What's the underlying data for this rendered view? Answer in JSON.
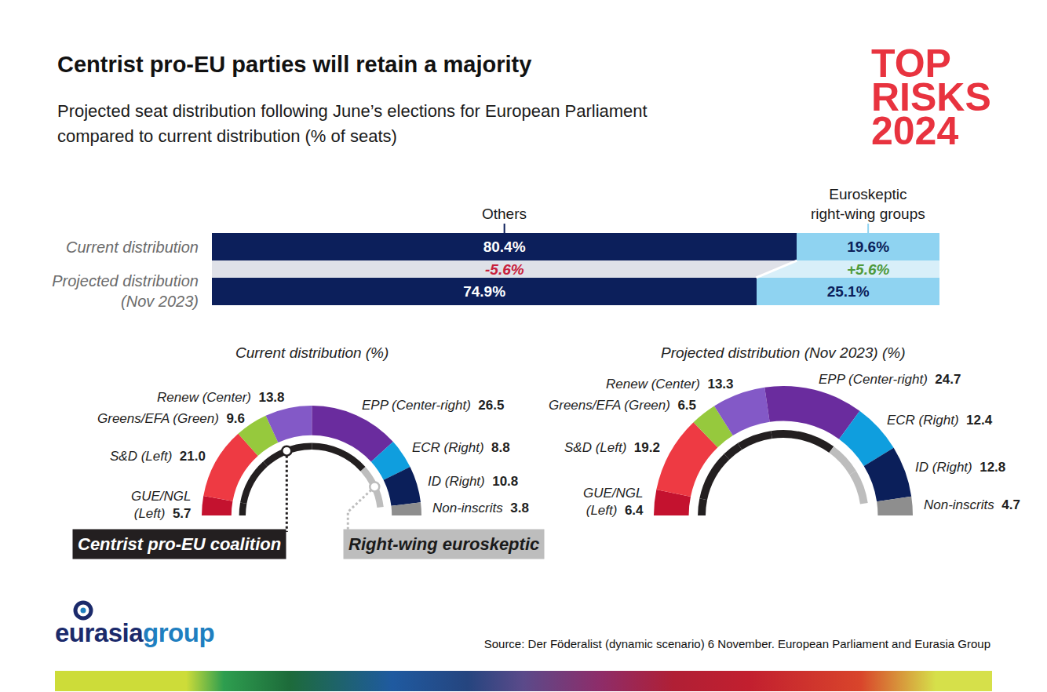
{
  "header": {
    "title": "Centrist pro-EU parties will retain a majority",
    "subtitle": "Projected seat distribution following June’s elections for European Parliament\ncompared to current distribution (% of seats)",
    "badge": "TOP\nRISKS\n2024"
  },
  "footer": {
    "logo": [
      "eurasia",
      "group"
    ],
    "source": "Source: Der Föderalist (dynamic scenario) 6 November. European Parliament and Eurasia Group"
  },
  "chart_data": [
    {
      "type": "bar",
      "orientation": "horizontal",
      "stacked": true,
      "data_labels": true,
      "tick_labels": "y",
      "grid": false,
      "categories": [
        "Current distribution",
        null,
        "Projected distribution\n(Nov 2023)"
      ],
      "xlim": [
        0,
        100
      ],
      "series": [
        {
          "name": "Others",
          "color": "#0c1f5b",
          "values": [
            80.4,
            null,
            74.9
          ],
          "value_labels": [
            "80.4%",
            null,
            "74.9%"
          ]
        },
        {
          "name": "Euroskeptic\nright-wing groups",
          "color": "#8fd3f1",
          "values": [
            19.6,
            null,
            25.1
          ],
          "value_labels": [
            "19.6%",
            null,
            "25.1%"
          ]
        }
      ],
      "change": {
        "values": [
          -5.6,
          5.6
        ],
        "value_labels": [
          "-5.6%",
          "+5.6%"
        ],
        "colors": [
          "#c8203c",
          "#4f9a3c"
        ]
      }
    },
    {
      "type": "pie",
      "title": "Current distribution (%)",
      "data_labels": true,
      "categories": [
        "GUE/NGL\n(Left)",
        "S&D (Left)",
        "Greens/EFA (Green)",
        "Renew (Center)",
        "EPP (Center-right)",
        "ECR (Right)",
        "ID (Right)",
        "Non-inscrits"
      ],
      "values": [
        5.7,
        21.0,
        9.6,
        13.8,
        26.5,
        8.8,
        10.8,
        3.8
      ],
      "value_labels": [
        "5.7",
        "21.0",
        "9.6",
        "13.8",
        "26.5",
        "8.8",
        "10.8",
        "3.8"
      ],
      "colors": [
        "#c4122f",
        "#ee3a43",
        "#96c93d",
        "#8359c7",
        "#6a2c9e",
        "#0f9ede",
        "#0b1f5a",
        "#8e8e8e"
      ],
      "brackets": [
        {
          "label": "Centrist pro-EU coalition",
          "color": "#231f20",
          "members": [
            "GUE/NGL\n(Left)",
            "S&D (Left)",
            "Greens/EFA (Green)",
            "Renew (Center)",
            "EPP (Center-right)"
          ]
        },
        {
          "label": "Right-wing euroskeptic",
          "color": "#bdbdbd",
          "members": [
            "ECR (Right)",
            "ID (Right)"
          ]
        }
      ]
    },
    {
      "type": "pie",
      "title": "Projected distribution (Nov 2023) (%)",
      "data_labels": true,
      "categories": [
        "GUE/NGL\n(Left)",
        "S&D (Left)",
        "Greens/EFA (Green)",
        "Renew (Center)",
        "EPP (Center-right)",
        "ECR (Right)",
        "ID (Right)",
        "Non-inscrits"
      ],
      "values": [
        6.4,
        19.2,
        6.5,
        13.3,
        24.7,
        12.4,
        12.8,
        4.7
      ],
      "value_labels": [
        "6.4",
        "19.2",
        "6.5",
        "13.3",
        "24.7",
        "12.4",
        "12.8",
        "4.7"
      ],
      "colors": [
        "#c4122f",
        "#ee3a43",
        "#96c93d",
        "#8359c7",
        "#6a2c9e",
        "#0f9ede",
        "#0b1f5a",
        "#8e8e8e"
      ],
      "brackets": [
        {
          "color": "#231f20",
          "members": [
            "GUE/NGL\n(Left)",
            "S&D (Left)",
            "Greens/EFA (Green)",
            "Renew (Center)",
            "EPP (Center-right)"
          ]
        },
        {
          "color": "#bdbdbd",
          "members": [
            "ECR (Right)",
            "ID (Right)"
          ]
        }
      ]
    }
  ]
}
